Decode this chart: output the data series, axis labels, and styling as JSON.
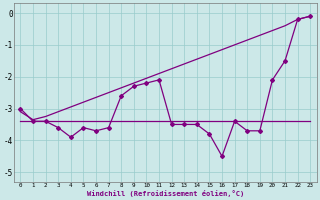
{
  "xlabel": "Windchill (Refroidissement éolien,°C)",
  "x_values": [
    0,
    1,
    2,
    3,
    4,
    5,
    6,
    7,
    8,
    9,
    10,
    11,
    12,
    13,
    14,
    15,
    16,
    17,
    18,
    19,
    20,
    21,
    22,
    23
  ],
  "y_data": [
    -3.0,
    -3.4,
    -3.4,
    -3.6,
    -3.9,
    -3.6,
    -3.7,
    -3.6,
    -2.6,
    -2.3,
    -2.2,
    -2.1,
    -3.5,
    -3.5,
    -3.5,
    -3.8,
    -4.5,
    -3.4,
    -3.7,
    -3.7,
    -2.1,
    -1.5,
    -0.2,
    -0.1
  ],
  "y_flat_line": [
    -3.4,
    -3.4,
    -3.4,
    -3.4,
    -3.4,
    -3.4,
    -3.4,
    -3.4,
    -3.4,
    -3.4,
    -3.4,
    -3.4,
    -3.4,
    -3.4,
    -3.4,
    -3.4,
    -3.4,
    -3.4,
    -3.4,
    -3.4,
    -3.4,
    -3.4,
    -3.4,
    -3.4
  ],
  "y_trend_line": [
    -3.1,
    -3.35,
    -3.25,
    -3.1,
    -2.95,
    -2.8,
    -2.65,
    -2.5,
    -2.35,
    -2.2,
    -2.05,
    -1.9,
    -1.75,
    -1.6,
    -1.45,
    -1.3,
    -1.15,
    -1.0,
    -0.85,
    -0.7,
    -0.55,
    -0.4,
    -0.2,
    -0.1
  ],
  "line_color": "#800080",
  "bg_color": "#cce8e8",
  "grid_color": "#99cccc",
  "ylim": [
    -5.3,
    0.3
  ],
  "xlim": [
    -0.5,
    23.5
  ],
  "yticks": [
    -5,
    -4,
    -3,
    -2,
    -1,
    0
  ],
  "xticks": [
    0,
    1,
    2,
    3,
    4,
    5,
    6,
    7,
    8,
    9,
    10,
    11,
    12,
    13,
    14,
    15,
    16,
    17,
    18,
    19,
    20,
    21,
    22,
    23
  ]
}
